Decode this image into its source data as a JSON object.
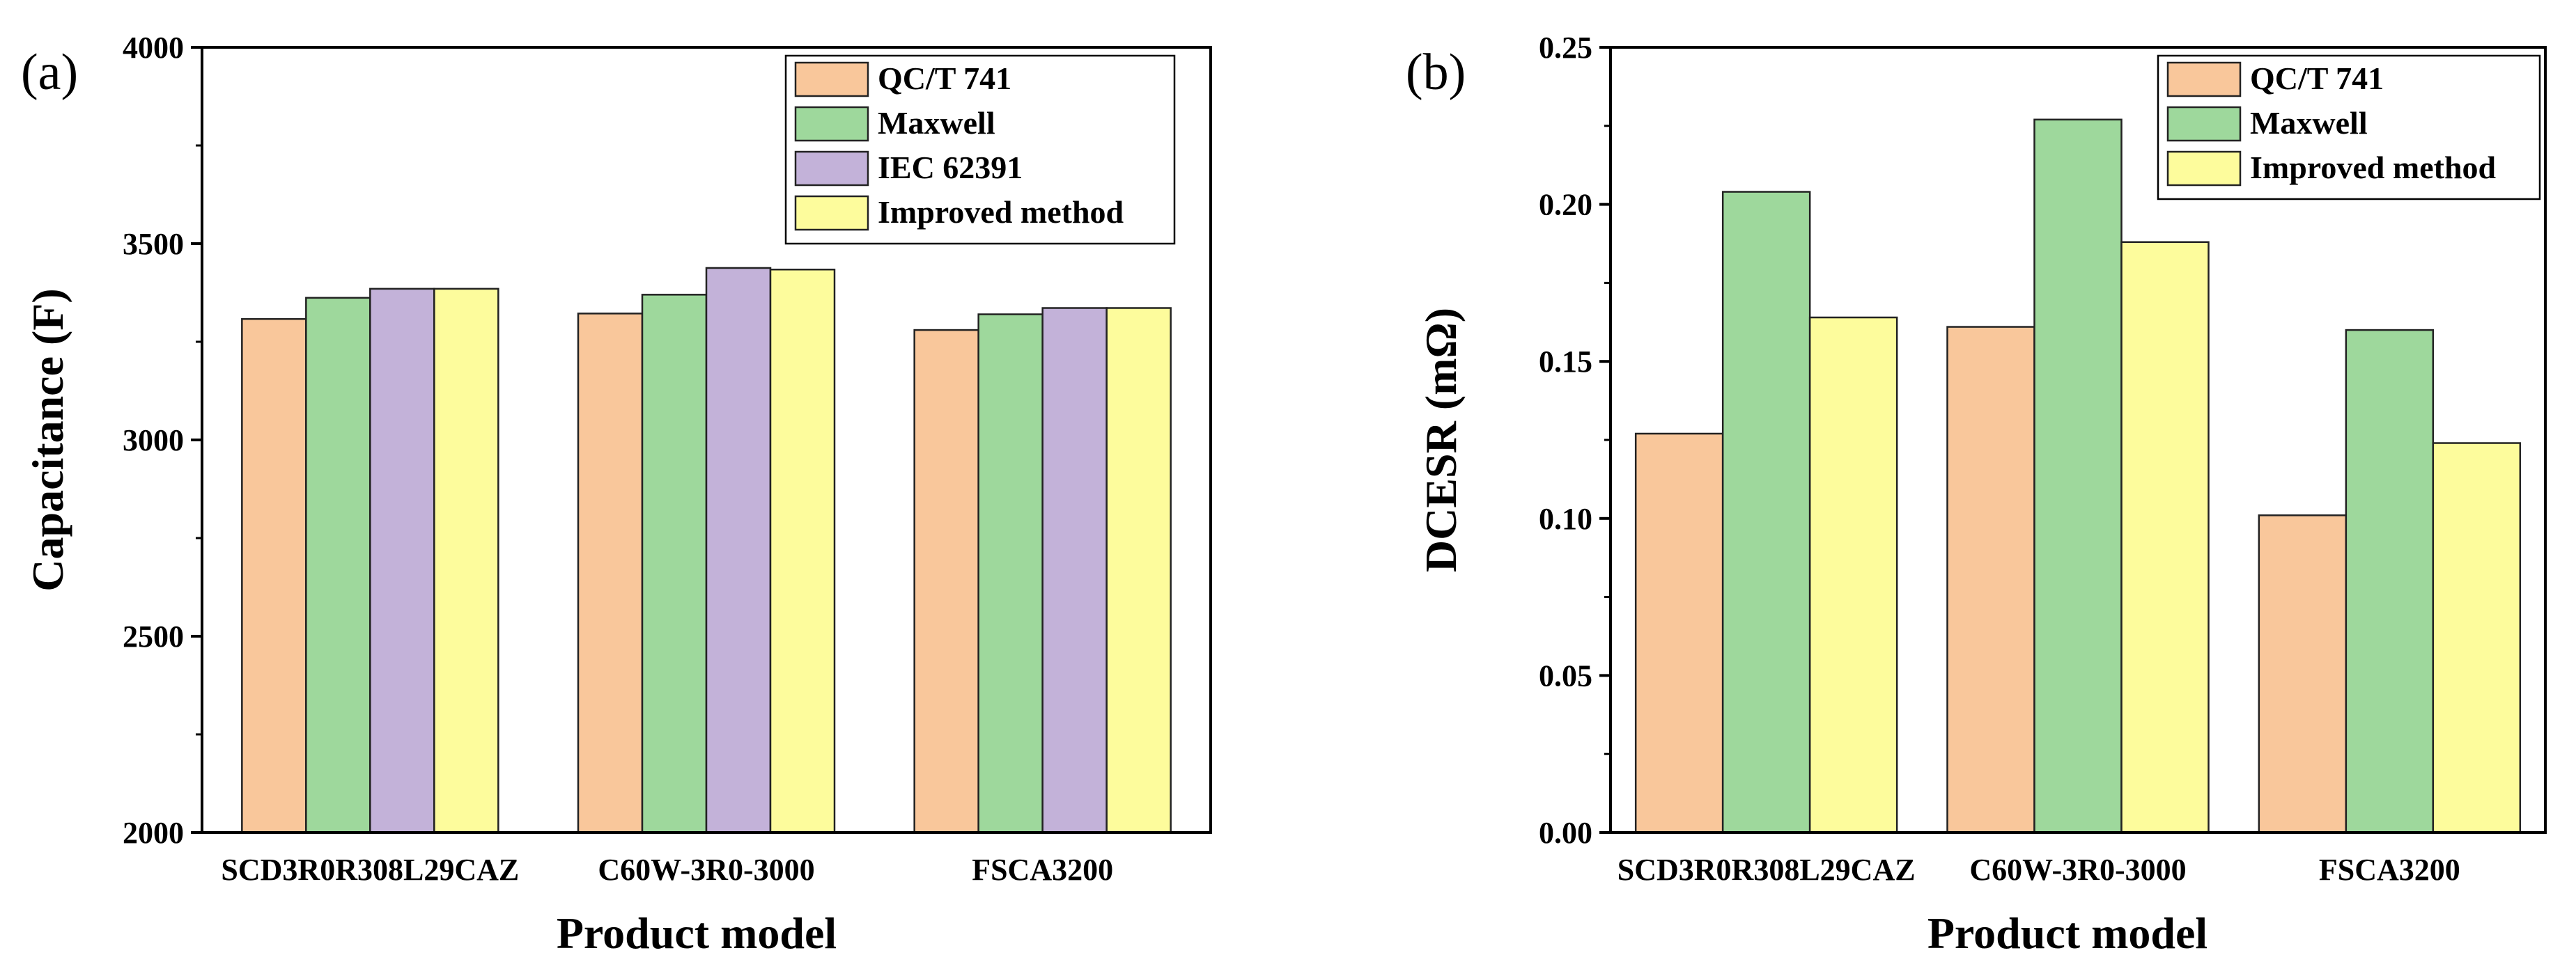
{
  "colors": {
    "QC/T 741": "#f9c79b",
    "Maxwell": "#9ed89c",
    "IEC 62391": "#c3b2d9",
    "Improved method": "#fdfc9c",
    "bar_stroke": "#222222"
  },
  "chart_data": [
    {
      "type": "bar",
      "panel_label": "(a)",
      "title": "",
      "xlabel": "Product model",
      "ylabel": "Capacitance (F)",
      "categories": [
        "SCD3R0R308L29CAZ",
        "C60W-3R0-3000",
        "FSCA3200"
      ],
      "ylim": [
        2000,
        4000
      ],
      "yticks": [
        "2000",
        "2500",
        "3000",
        "3500",
        "4000"
      ],
      "legend_position": "top-right",
      "grid": false,
      "series": [
        {
          "name": "QC/T 741",
          "values": [
            3308,
            3322,
            3280
          ]
        },
        {
          "name": "Maxwell",
          "values": [
            3362,
            3370,
            3320
          ]
        },
        {
          "name": "IEC 62391",
          "values": [
            3385,
            3438,
            3336
          ]
        },
        {
          "name": "Improved method",
          "values": [
            3385,
            3434,
            3336
          ]
        }
      ]
    },
    {
      "type": "bar",
      "panel_label": "(b)",
      "title": "",
      "xlabel": "Product model",
      "ylabel": "DCESR (mΩ)",
      "categories": [
        "SCD3R0R308L29CAZ",
        "C60W-3R0-3000",
        "FSCA3200"
      ],
      "ylim": [
        0,
        0.25
      ],
      "yticks": [
        "0.00",
        "0.05",
        "0.10",
        "0.15",
        "0.20",
        "0.25"
      ],
      "legend_position": "top-right",
      "grid": false,
      "series": [
        {
          "name": "QC/T 741",
          "values": [
            0.127,
            0.161,
            0.101
          ]
        },
        {
          "name": "Maxwell",
          "values": [
            0.204,
            0.227,
            0.16
          ]
        },
        {
          "name": "Improved method",
          "values": [
            0.164,
            0.188,
            0.124
          ]
        }
      ]
    }
  ]
}
